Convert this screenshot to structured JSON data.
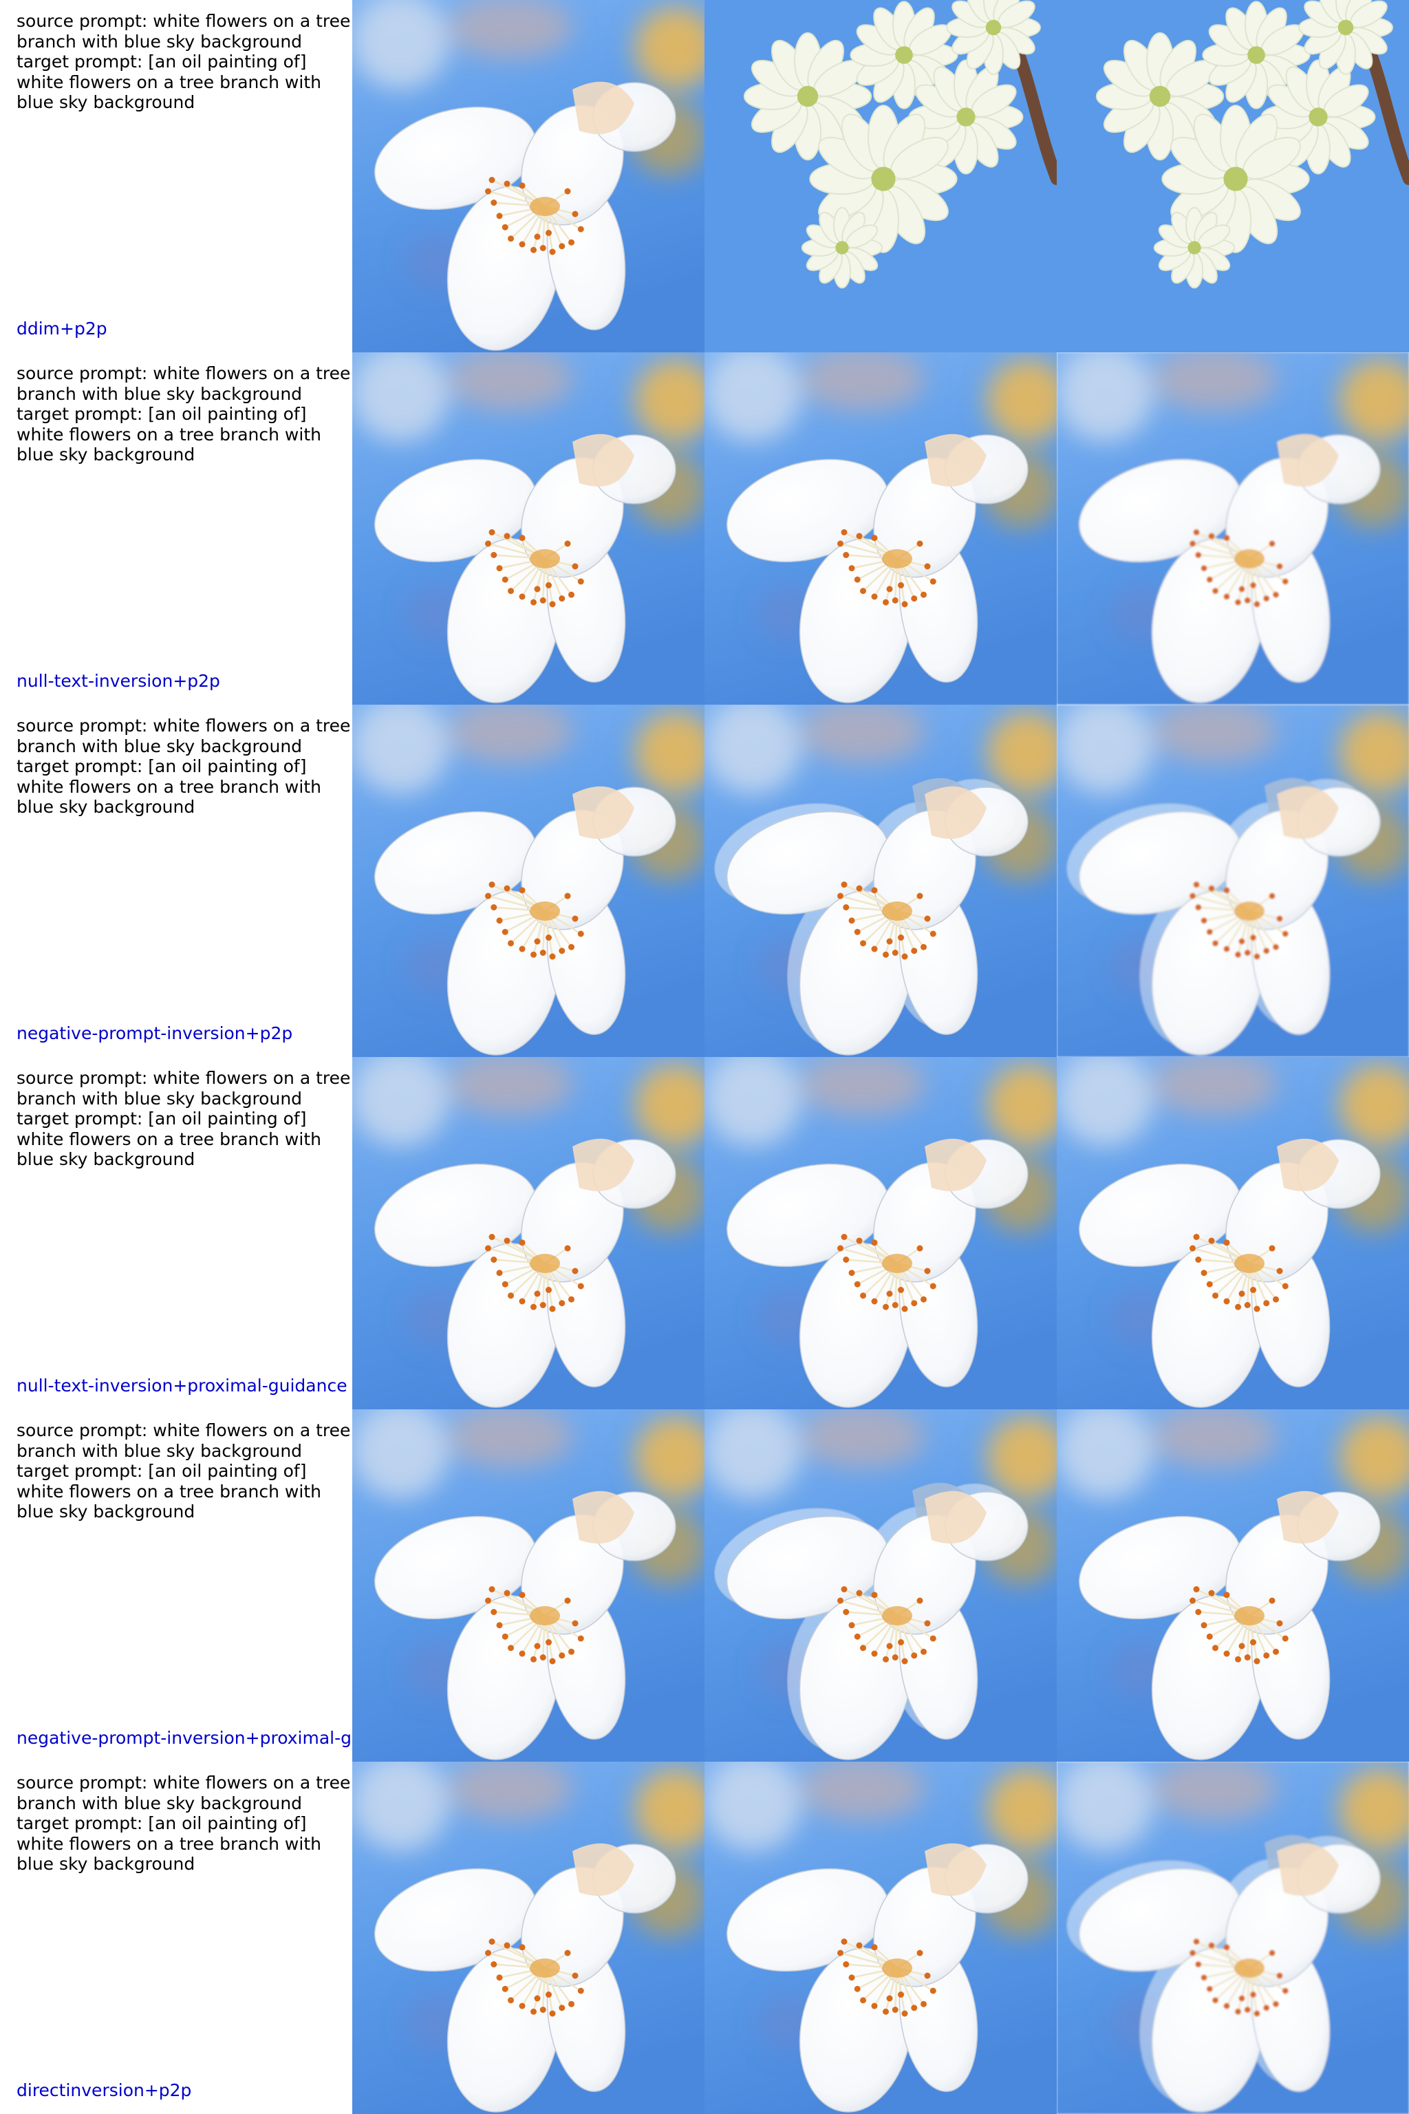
{
  "prompt_block": "source prompt: white flowers on a tree\nbranch with blue sky background\ntarget prompt: [an oil painting of]\nwhite flowers on a tree branch with\nblue sky background",
  "rows": [
    {
      "method": "ddim+p2p",
      "images": [
        {
          "name": "source-flower-image",
          "variant": "source"
        },
        {
          "name": "reconstruction-flower-image",
          "variant": "cluster"
        },
        {
          "name": "edited-flower-image",
          "variant": "cluster"
        }
      ]
    },
    {
      "method": "null-text-inversion+p2p",
      "images": [
        {
          "name": "source-flower-image",
          "variant": "source"
        },
        {
          "name": "reconstruction-flower-image",
          "variant": "source"
        },
        {
          "name": "edited-flower-image",
          "variant": "painted"
        }
      ]
    },
    {
      "method": "negative-prompt-inversion+p2p",
      "images": [
        {
          "name": "source-flower-image",
          "variant": "source"
        },
        {
          "name": "reconstruction-flower-image",
          "variant": "ghost"
        },
        {
          "name": "edited-flower-image",
          "variant": "ghost-painted"
        }
      ]
    },
    {
      "method": "null-text-inversion+proximal-guidance",
      "images": [
        {
          "name": "source-flower-image",
          "variant": "source"
        },
        {
          "name": "reconstruction-flower-image",
          "variant": "source"
        },
        {
          "name": "edited-flower-image",
          "variant": "source"
        }
      ]
    },
    {
      "method": "negative-prompt-inversion+proximal-guidance",
      "images": [
        {
          "name": "source-flower-image",
          "variant": "source"
        },
        {
          "name": "reconstruction-flower-image",
          "variant": "ghost"
        },
        {
          "name": "edited-flower-image",
          "variant": "source"
        }
      ]
    },
    {
      "method": "directinversion+p2p",
      "images": [
        {
          "name": "source-flower-image",
          "variant": "source"
        },
        {
          "name": "reconstruction-flower-image",
          "variant": "source"
        },
        {
          "name": "edited-flower-image",
          "variant": "ghost-painted"
        }
      ]
    }
  ],
  "colors": {
    "sky_light": "#7fb3f2",
    "sky_main": "#5a9ae8",
    "sky_deep": "#4a88dd",
    "petal": "#f6f8fb",
    "petal_shade": "#d7dfe8",
    "stamen": "#e7a13b",
    "anther": "#d86a1a",
    "branch": "#6e4a36",
    "label_blue": "#0000cc"
  }
}
